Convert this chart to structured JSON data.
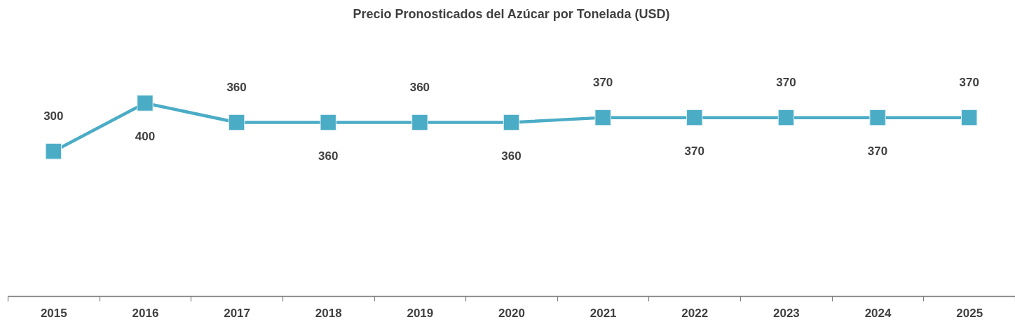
{
  "chart_data": {
    "type": "line",
    "title": "Precio Pronosticados del Azúcar por Tonelada (USD)",
    "categories": [
      "2015",
      "2016",
      "2017",
      "2018",
      "2019",
      "2020",
      "2021",
      "2022",
      "2023",
      "2024",
      "2025"
    ],
    "values": [
      300,
      400,
      360,
      360,
      360,
      360,
      370,
      370,
      370,
      370,
      370
    ],
    "color": "#4bacc6",
    "data_labels": true,
    "marker": "square",
    "line_style": "solid",
    "tick_labels": "x"
  }
}
